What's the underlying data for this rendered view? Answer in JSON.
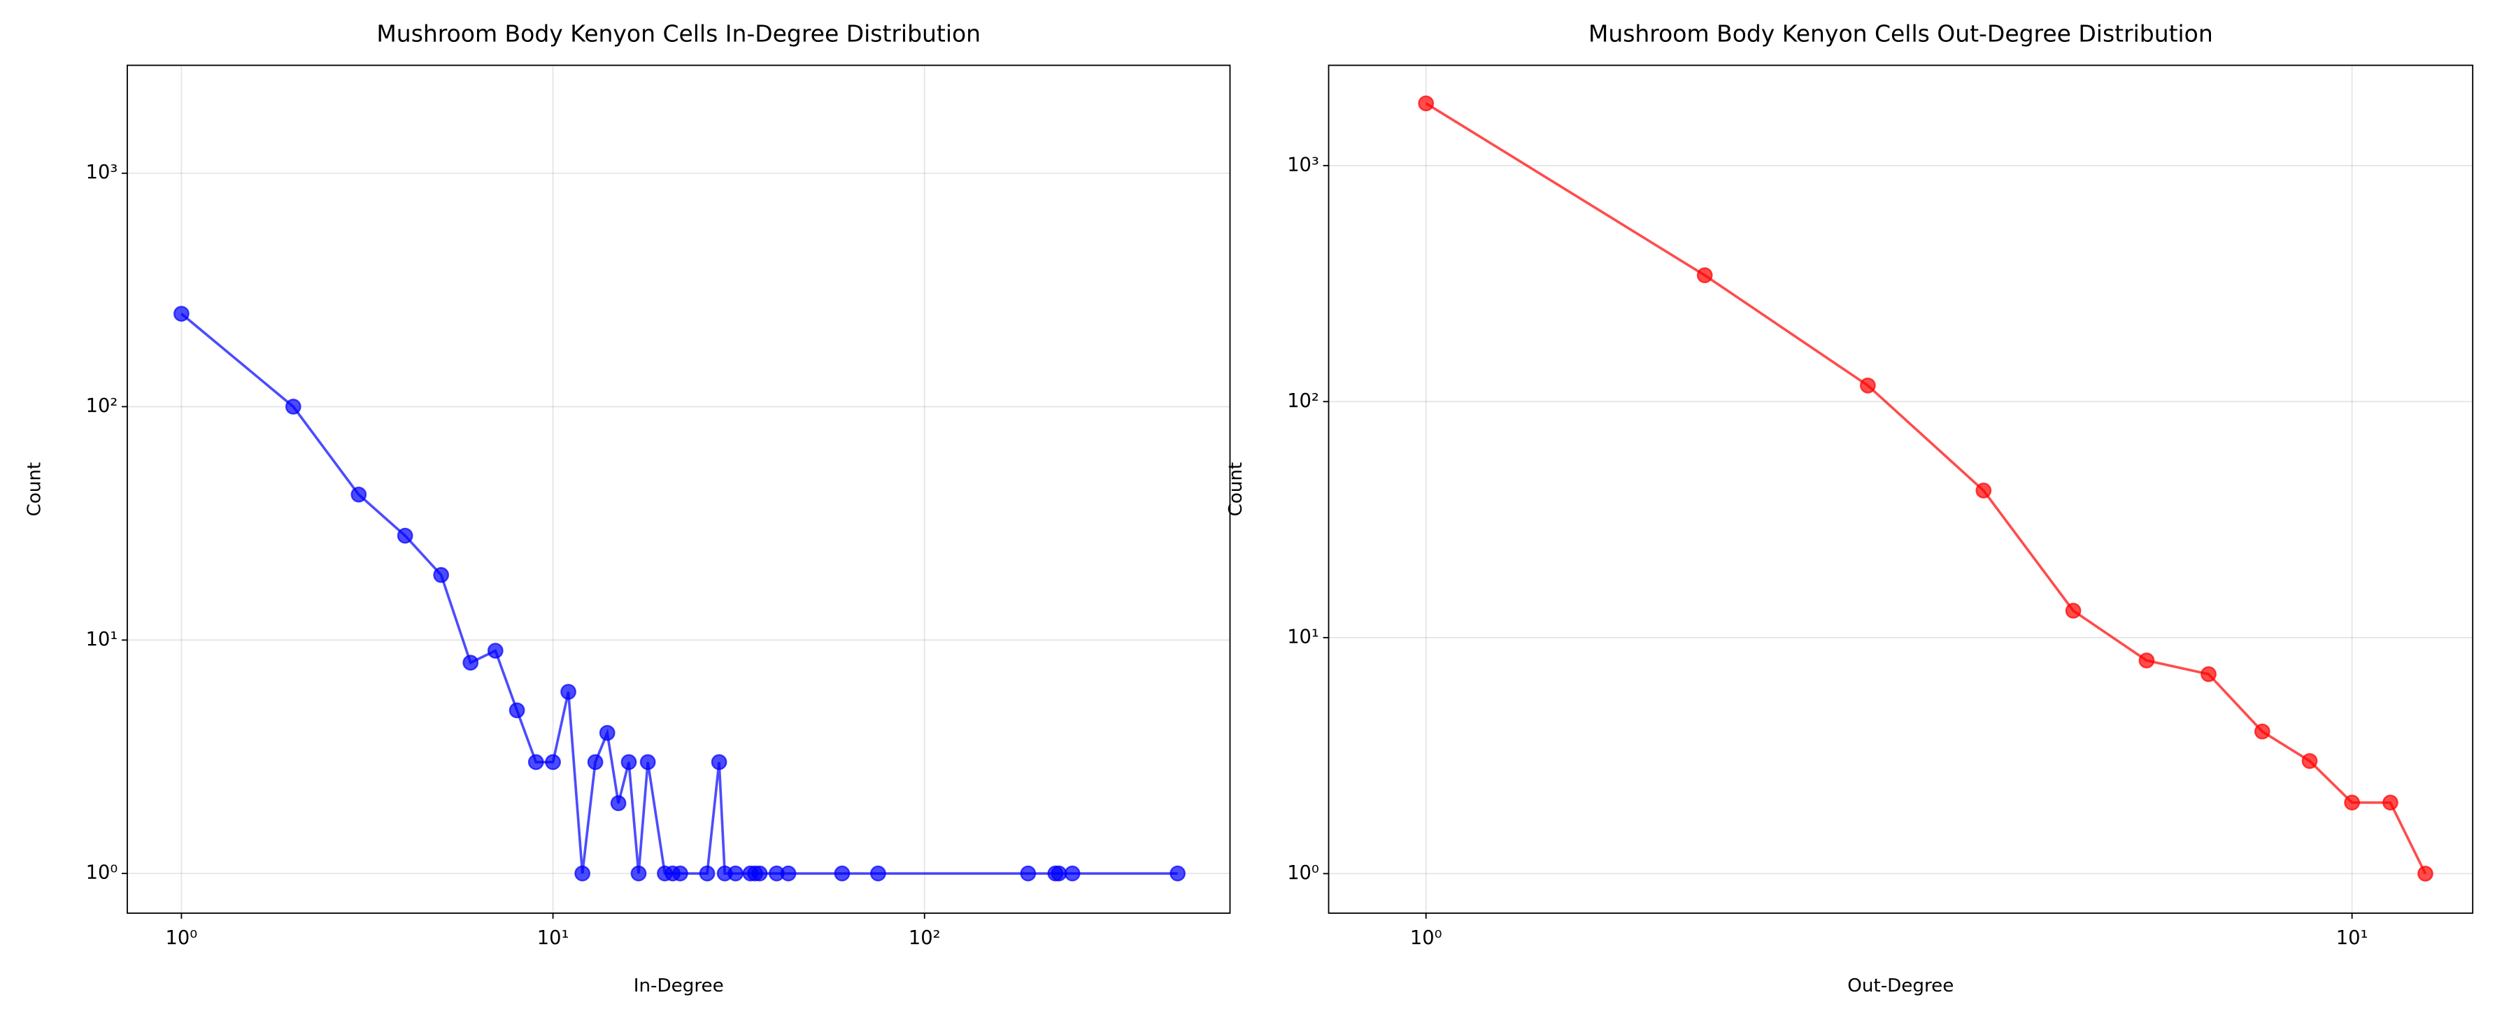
{
  "chart_data": [
    {
      "type": "line",
      "title": "Mushroom Body Kenyon Cells In-Degree Distribution",
      "xlabel": "In-Degree",
      "ylabel": "Count",
      "xscale": "log",
      "yscale": "log",
      "grid": true,
      "color": "#0000ff",
      "x": [
        1,
        2,
        3,
        4,
        5,
        6,
        7,
        8,
        9,
        10,
        11,
        12,
        13,
        14,
        15,
        16,
        17,
        18,
        20,
        21,
        22,
        26,
        28,
        29,
        31,
        34,
        35,
        36,
        40,
        43,
        60,
        75,
        190,
        225,
        230,
        250,
        480
      ],
      "values": [
        250,
        100,
        42,
        28,
        19,
        8,
        9,
        5,
        3,
        3,
        6,
        1,
        3,
        4,
        2,
        3,
        1,
        3,
        1,
        1,
        1,
        1,
        3,
        1,
        1,
        1,
        1,
        1,
        1,
        1,
        1,
        1,
        1,
        1,
        1,
        1,
        1
      ],
      "xlim": [
        0.715,
        664
      ],
      "ylim": [
        0.676,
        2900
      ],
      "xticks": [
        {
          "value": 1,
          "label": "10⁰"
        },
        {
          "value": 10,
          "label": "10¹"
        },
        {
          "value": 100,
          "label": "10²"
        }
      ],
      "yticks": [
        {
          "value": 1,
          "label": "10⁰"
        },
        {
          "value": 10,
          "label": "10¹"
        },
        {
          "value": 100,
          "label": "10²"
        },
        {
          "value": 1000,
          "label": "10³"
        }
      ]
    },
    {
      "type": "line",
      "title": "Mushroom Body Kenyon Cells Out-Degree Distribution",
      "xlabel": "Out-Degree",
      "ylabel": "Count",
      "xscale": "log",
      "yscale": "log",
      "grid": true,
      "color": "#ff0000",
      "x": [
        1,
        2,
        3,
        4,
        5,
        6,
        7,
        8,
        9,
        10,
        11,
        12
      ],
      "values": [
        1835,
        343,
        117,
        42,
        13,
        8,
        7,
        4,
        3,
        2,
        2,
        1
      ],
      "xlim": [
        0.785,
        13.5
      ],
      "ylim": [
        0.68,
        2660
      ],
      "xticks": [
        {
          "value": 1,
          "label": "10⁰"
        },
        {
          "value": 10,
          "label": "10¹"
        }
      ],
      "yticks": [
        {
          "value": 1,
          "label": "10⁰"
        },
        {
          "value": 10,
          "label": "10¹"
        },
        {
          "value": 100,
          "label": "10²"
        },
        {
          "value": 1000,
          "label": "10³"
        }
      ]
    }
  ]
}
